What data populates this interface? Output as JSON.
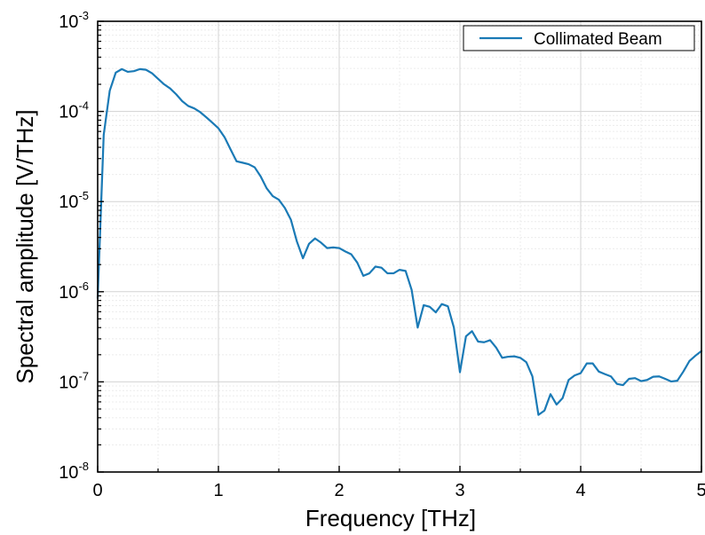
{
  "chart_data": {
    "type": "line",
    "xlabel": "Frequency [THz]",
    "ylabel": "Spectral amplitude [V/THz]",
    "x_scale": "linear",
    "y_scale": "log",
    "xlim": [
      0,
      5
    ],
    "ylim": [
      1e-08,
      0.001
    ],
    "x_ticks": [
      "0",
      "1",
      "2",
      "3",
      "4",
      "5"
    ],
    "y_ticks": [
      {
        "base": "10",
        "exp": "-8"
      },
      {
        "base": "10",
        "exp": "-7"
      },
      {
        "base": "10",
        "exp": "-6"
      },
      {
        "base": "10",
        "exp": "-5"
      },
      {
        "base": "10",
        "exp": "-4"
      },
      {
        "base": "10",
        "exp": "-3"
      }
    ],
    "grid": true,
    "legend_position": "top-right",
    "colors": {
      "line": "#1a7ab6",
      "major_grid": "#d3d3d3",
      "minor_grid": "#ececec"
    },
    "series": [
      {
        "name": "Collimated Beam",
        "x": [
          0,
          0.05,
          0.1,
          0.15,
          0.2,
          0.25,
          0.3,
          0.35,
          0.4,
          0.45,
          0.5,
          0.55,
          0.6,
          0.65,
          0.7,
          0.75,
          0.8,
          0.85,
          0.9,
          0.95,
          1.0,
          1.05,
          1.1,
          1.15,
          1.2,
          1.25,
          1.3,
          1.35,
          1.4,
          1.45,
          1.5,
          1.55,
          1.6,
          1.65,
          1.7,
          1.75,
          1.8,
          1.85,
          1.9,
          1.95,
          2.0,
          2.05,
          2.1,
          2.15,
          2.2,
          2.25,
          2.3,
          2.35,
          2.4,
          2.45,
          2.5,
          2.55,
          2.6,
          2.65,
          2.7,
          2.75,
          2.8,
          2.85,
          2.9,
          2.95,
          3.0,
          3.05,
          3.1,
          3.15,
          3.2,
          3.25,
          3.3,
          3.35,
          3.4,
          3.45,
          3.5,
          3.55,
          3.6,
          3.65,
          3.7,
          3.75,
          3.8,
          3.85,
          3.9,
          3.95,
          4.0,
          4.05,
          4.1,
          4.15,
          4.2,
          4.25,
          4.3,
          4.35,
          4.4,
          4.45,
          4.5,
          4.55,
          4.6,
          4.65,
          4.7,
          4.75,
          4.8,
          4.85,
          4.9,
          4.95,
          5.0
        ],
        "y": [
          8.5e-07,
          5.5e-05,
          0.00017,
          0.00027,
          0.000295,
          0.000275,
          0.00028,
          0.000295,
          0.00029,
          0.000265,
          0.00023,
          0.0002,
          0.00018,
          0.000155,
          0.00013,
          0.000115,
          0.000108,
          9.8e-05,
          8.6e-05,
          7.5e-05,
          6.5e-05,
          5.2e-05,
          3.8e-05,
          2.8e-05,
          2.7e-05,
          2.6e-05,
          2.4e-05,
          1.9e-05,
          1.4e-05,
          1.15e-05,
          1.05e-05,
          8.5e-06,
          6.3e-06,
          3.6e-06,
          2.35e-06,
          3.4e-06,
          3.9e-06,
          3.5e-06,
          3.05e-06,
          3.1e-06,
          3.05e-06,
          2.8e-06,
          2.6e-06,
          2.1e-06,
          1.5e-06,
          1.6e-06,
          1.9e-06,
          1.85e-06,
          1.6e-06,
          1.6e-06,
          1.75e-06,
          1.7e-06,
          1.05e-06,
          4e-07,
          7.1e-07,
          6.8e-07,
          5.9e-07,
          7.3e-07,
          6.9e-07,
          4e-07,
          1.28e-07,
          3.2e-07,
          3.65e-07,
          2.8e-07,
          2.75e-07,
          2.9e-07,
          2.4e-07,
          1.85e-07,
          1.9e-07,
          1.92e-07,
          1.85e-07,
          1.65e-07,
          1.15e-07,
          4.3e-08,
          4.8e-08,
          7.3e-08,
          5.6e-08,
          6.6e-08,
          1.05e-07,
          1.18e-07,
          1.25e-07,
          1.6e-07,
          1.6e-07,
          1.3e-07,
          1.22e-07,
          1.15e-07,
          9.5e-08,
          9.2e-08,
          1.08e-07,
          1.1e-07,
          1.02e-07,
          1.05e-07,
          1.14e-07,
          1.15e-07,
          1.08e-07,
          1.01e-07,
          1.03e-07,
          1.3e-07,
          1.7e-07,
          1.95e-07,
          2.2e-07
        ]
      }
    ]
  }
}
